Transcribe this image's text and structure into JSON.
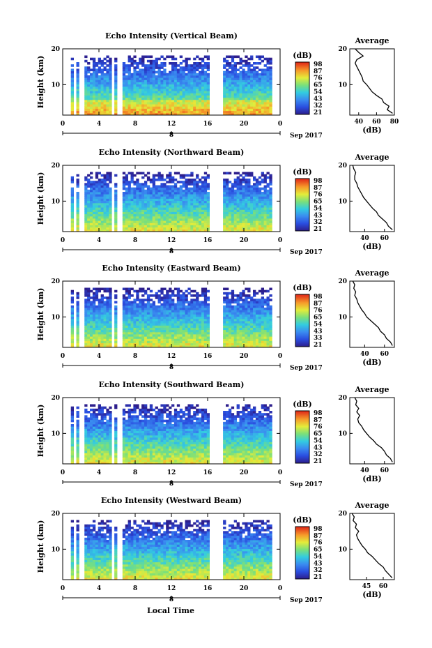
{
  "figure": {
    "xlabel": "Local Time",
    "date_label": "Sep 2017",
    "date_tick": "8",
    "avg_xlabel": "(dB)",
    "colorbar_unit": "(dB)"
  },
  "chart_data": [
    {
      "type": "heatmap",
      "title": "Echo Intensity (Vertical Beam)",
      "ylabel": "Height (km)",
      "xlabel": "Local Time",
      "x_ticks": [
        "0",
        "4",
        "8",
        "12",
        "16",
        "20",
        "0"
      ],
      "x_range": [
        0,
        24
      ],
      "y_ticks": [
        "10",
        "20"
      ],
      "y_range": [
        1.5,
        20
      ],
      "colorbar": {
        "label": "(dB)",
        "ticks": [
          "98",
          "87",
          "76",
          "65",
          "54",
          "43",
          "32",
          "21"
        ],
        "range": [
          21,
          98
        ]
      },
      "average": {
        "title": "Average",
        "xlabel": "(dB)",
        "x_ticks": [
          "40",
          "60",
          "80"
        ],
        "x_range": [
          30,
          80
        ],
        "profile": {
          "height": [
            2,
            3,
            4,
            5,
            6,
            7,
            8,
            9,
            10,
            11,
            12,
            13,
            14,
            15,
            16,
            17,
            18,
            19,
            20
          ],
          "db": [
            78,
            72,
            74,
            68,
            66,
            60,
            55,
            52,
            49,
            45,
            44,
            42,
            40,
            38,
            36,
            38,
            45,
            40,
            36
          ]
        }
      }
    },
    {
      "type": "heatmap",
      "title": "Echo Intensity (Northward Beam)",
      "ylabel": "Height (km)",
      "xlabel": "Local Time",
      "x_ticks": [
        "0",
        "4",
        "8",
        "12",
        "16",
        "20",
        "0"
      ],
      "x_range": [
        0,
        24
      ],
      "y_ticks": [
        "10",
        "20"
      ],
      "y_range": [
        1.5,
        20
      ],
      "colorbar": {
        "label": "(dB)",
        "ticks": [
          "98",
          "87",
          "76",
          "65",
          "54",
          "43",
          "32",
          "21"
        ],
        "range": [
          21,
          98
        ]
      },
      "average": {
        "title": "Average",
        "xlabel": "(dB)",
        "x_ticks": [
          "40",
          "60"
        ],
        "x_range": [
          25,
          70
        ],
        "profile": {
          "height": [
            2,
            3,
            4,
            5,
            6,
            7,
            8,
            9,
            10,
            11,
            12,
            13,
            14,
            15,
            16,
            17,
            18,
            19,
            20
          ],
          "db": [
            68,
            64,
            62,
            58,
            54,
            52,
            48,
            45,
            42,
            39,
            37,
            35,
            33,
            32,
            30,
            30,
            31,
            29,
            28
          ]
        }
      }
    },
    {
      "type": "heatmap",
      "title": "Echo Intensity (Eastward Beam)",
      "ylabel": "Height (km)",
      "xlabel": "Local Time",
      "x_ticks": [
        "0",
        "4",
        "8",
        "12",
        "16",
        "20",
        "0"
      ],
      "x_range": [
        0,
        24
      ],
      "y_ticks": [
        "10",
        "20"
      ],
      "y_range": [
        1.5,
        20
      ],
      "colorbar": {
        "label": "(dB)",
        "ticks": [
          "98",
          "87",
          "76",
          "65",
          "54",
          "43",
          "33",
          "21"
        ],
        "range": [
          21,
          98
        ]
      },
      "average": {
        "title": "Average",
        "xlabel": "(dB)",
        "x_ticks": [
          "40",
          "60"
        ],
        "x_range": [
          25,
          70
        ],
        "profile": {
          "height": [
            2,
            3,
            4,
            5,
            6,
            7,
            8,
            9,
            10,
            11,
            12,
            13,
            14,
            15,
            16,
            17,
            18,
            19,
            20
          ],
          "db": [
            68,
            66,
            62,
            60,
            56,
            54,
            50,
            46,
            42,
            40,
            37,
            35,
            33,
            32,
            30,
            31,
            29,
            30,
            28
          ]
        }
      }
    },
    {
      "type": "heatmap",
      "title": "Echo Intensity (Southward Beam)",
      "ylabel": "Height (km)",
      "xlabel": "Local Time",
      "x_ticks": [
        "0",
        "4",
        "8",
        "12",
        "16",
        "20",
        "0"
      ],
      "x_range": [
        0,
        24
      ],
      "y_ticks": [
        "10",
        "20"
      ],
      "y_range": [
        1.5,
        20
      ],
      "colorbar": {
        "label": "(dB)",
        "ticks": [
          "98",
          "87",
          "76",
          "65",
          "54",
          "43",
          "32",
          "21"
        ],
        "range": [
          21,
          98
        ]
      },
      "average": {
        "title": "Average",
        "xlabel": "(dB)",
        "x_ticks": [
          "40",
          "60"
        ],
        "x_range": [
          25,
          70
        ],
        "profile": {
          "height": [
            2,
            3,
            4,
            5,
            6,
            7,
            8,
            9,
            10,
            11,
            12,
            13,
            14,
            15,
            16,
            17,
            18,
            19,
            20
          ],
          "db": [
            68,
            66,
            62,
            60,
            57,
            52,
            49,
            45,
            42,
            39,
            37,
            34,
            33,
            35,
            32,
            34,
            31,
            32,
            30
          ]
        }
      }
    },
    {
      "type": "heatmap",
      "title": "Echo Intensity (Westward Beam)",
      "ylabel": "Height (km)",
      "xlabel": "Local Time",
      "x_ticks": [
        "0",
        "4",
        "8",
        "12",
        "16",
        "20",
        "0"
      ],
      "x_range": [
        0,
        24
      ],
      "y_ticks": [
        "10",
        "20"
      ],
      "y_range": [
        1.5,
        20
      ],
      "colorbar": {
        "label": "(dB)",
        "ticks": [
          "98",
          "87",
          "76",
          "65",
          "54",
          "43",
          "32",
          "21"
        ],
        "range": [
          21,
          98
        ]
      },
      "average": {
        "title": "Average",
        "xlabel": "(dB)",
        "x_ticks": [
          "45",
          "60"
        ],
        "x_range": [
          30,
          70
        ],
        "profile": {
          "height": [
            2,
            3,
            4,
            5,
            6,
            7,
            8,
            9,
            10,
            11,
            12,
            13,
            14,
            15,
            16,
            17,
            18,
            19,
            20
          ],
          "db": [
            68,
            65,
            62,
            60,
            56,
            53,
            50,
            46,
            44,
            41,
            39,
            37,
            36,
            38,
            35,
            36,
            33,
            34,
            32
          ]
        }
      }
    }
  ]
}
